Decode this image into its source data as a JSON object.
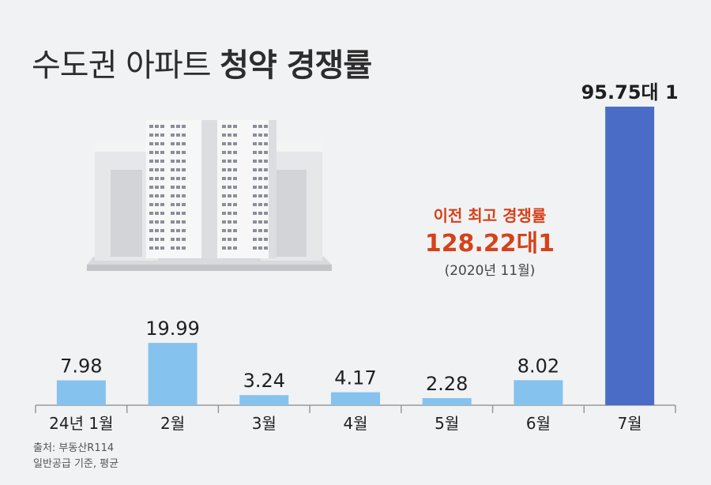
{
  "title": {
    "light": "수도권 아파트 ",
    "bold": "청약 경쟁률"
  },
  "annotation": {
    "label": "이전 최고 경쟁률",
    "value": "128.22대1",
    "date": "(2020년 11월)"
  },
  "source": {
    "line1": "출처: 부동산R114",
    "line2": "일반공급 기준, 평균"
  },
  "colors": {
    "bar": "#86c2ee",
    "highlight": "#4a6cc7",
    "annotation": "#d5421a"
  },
  "chart_data": {
    "type": "bar",
    "categories": [
      "24년 1월",
      "2월",
      "3월",
      "4월",
      "5월",
      "6월",
      "7월"
    ],
    "values": [
      7.98,
      19.99,
      3.24,
      4.17,
      2.28,
      8.02,
      95.75
    ],
    "value_labels": [
      "7.98",
      "19.99",
      "3.24",
      "4.17",
      "2.28",
      "8.02",
      "95.75대 1"
    ],
    "highlight_index": 6,
    "title": "수도권 아파트 청약 경쟁률",
    "xlabel": "",
    "ylabel": "",
    "ylim": [
      0,
      100
    ],
    "grid": false,
    "legend": "none"
  }
}
